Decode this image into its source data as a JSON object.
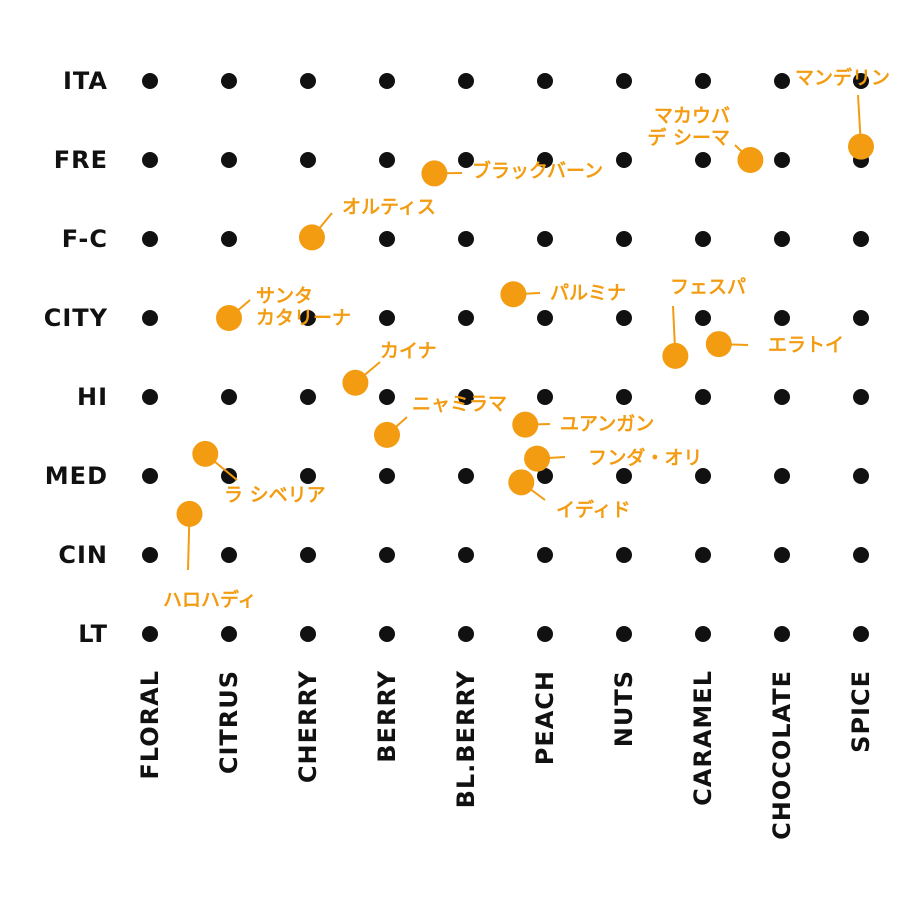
{
  "chart_data": {
    "type": "scatter",
    "title": "",
    "xlabel": "",
    "ylabel": "",
    "x_categories": [
      "FLORAL",
      "CITRUS",
      "CHERRY",
      "BERRY",
      "BL.BERRY",
      "PEACH",
      "NUTS",
      "CARAMEL",
      "CHOCOLATE",
      "SPICE"
    ],
    "y_categories": [
      "ITA",
      "FRE",
      "F-C",
      "CITY",
      "HI",
      "MED",
      "CIN",
      "LT"
    ],
    "grid_dot_color": "#111111",
    "point_color": "#f39c12",
    "points": [
      {
        "label": "マンデリン",
        "x": 9.0,
        "y": 0.83
      },
      {
        "label": "マカウバ デ シーマ",
        "x": 7.6,
        "y": 1.0
      },
      {
        "label": "ブラックバーン",
        "x": 3.6,
        "y": 1.17
      },
      {
        "label": "オルティス",
        "x": 2.05,
        "y": 1.98
      },
      {
        "label": "サンタ カタリーナ",
        "x": 1.0,
        "y": 3.0
      },
      {
        "label": "パルミナ",
        "x": 4.6,
        "y": 2.7
      },
      {
        "label": "フェスパ",
        "x": 6.65,
        "y": 3.48
      },
      {
        "label": "エラトイ",
        "x": 7.2,
        "y": 3.33
      },
      {
        "label": "カイナ",
        "x": 2.6,
        "y": 3.82
      },
      {
        "label": "ニャミラマ",
        "x": 3.0,
        "y": 4.48
      },
      {
        "label": "ユアンガン",
        "x": 4.75,
        "y": 4.35
      },
      {
        "label": "フンダ・オリ",
        "x": 4.9,
        "y": 4.78
      },
      {
        "label": "イディド",
        "x": 4.7,
        "y": 5.08
      },
      {
        "label": "ラ シベリア",
        "x": 0.7,
        "y": 4.72
      },
      {
        "label": "ハロハディ",
        "x": 0.5,
        "y": 5.48
      }
    ]
  }
}
